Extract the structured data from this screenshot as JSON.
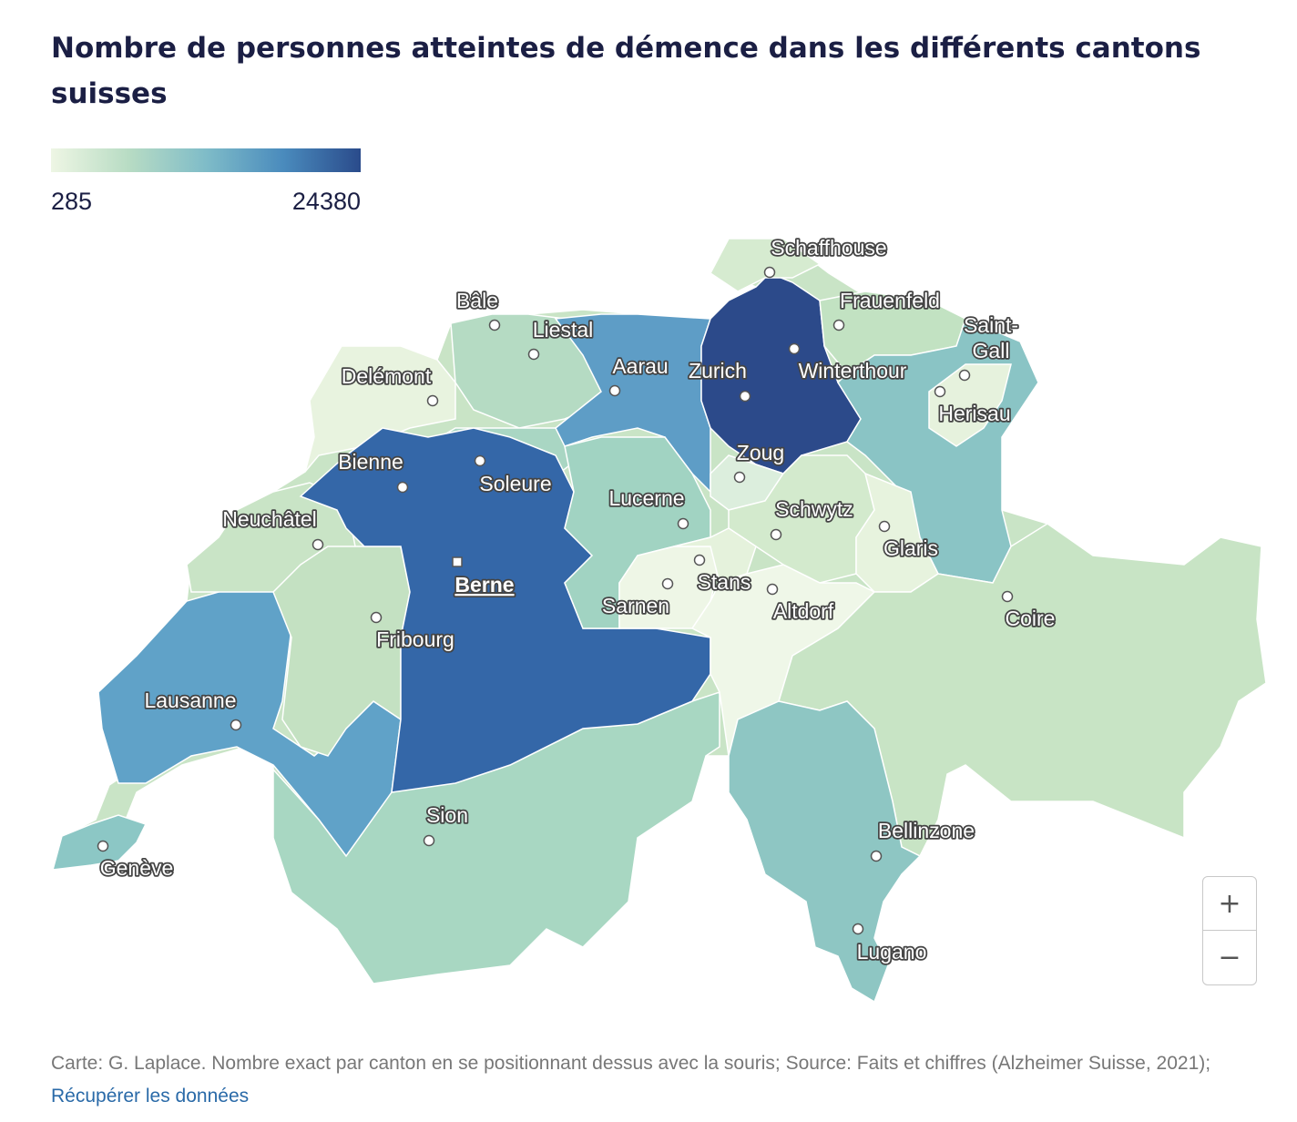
{
  "title": "Nombre de personnes atteintes de démence dans les différents cantons suisses",
  "legend": {
    "min": "285",
    "max": "24380",
    "colors": [
      "#eef6e4",
      "#b8dcc4",
      "#7fbcc8",
      "#4a8bbd",
      "#2a4b8b"
    ]
  },
  "cities": [
    {
      "name": "Schaffhouse",
      "capital": false
    },
    {
      "name": "Frauenfeld",
      "capital": false
    },
    {
      "name": "Saint-Gall",
      "capital": false
    },
    {
      "name": "Bâle",
      "capital": false
    },
    {
      "name": "Liestal",
      "capital": false
    },
    {
      "name": "Aarau",
      "capital": false
    },
    {
      "name": "Zurich",
      "capital": false
    },
    {
      "name": "Winterthour",
      "capital": false
    },
    {
      "name": "Delémont",
      "capital": false
    },
    {
      "name": "Herisau",
      "capital": false
    },
    {
      "name": "Zoug",
      "capital": false
    },
    {
      "name": "Bienne",
      "capital": false
    },
    {
      "name": "Soleure",
      "capital": false
    },
    {
      "name": "Lucerne",
      "capital": false
    },
    {
      "name": "Schwytz",
      "capital": false
    },
    {
      "name": "Neuchâtel",
      "capital": false
    },
    {
      "name": "Glaris",
      "capital": false
    },
    {
      "name": "Berne",
      "capital": true
    },
    {
      "name": "Stans",
      "capital": false
    },
    {
      "name": "Sarnen",
      "capital": false
    },
    {
      "name": "Altdorf",
      "capital": false
    },
    {
      "name": "Coire",
      "capital": false
    },
    {
      "name": "Fribourg",
      "capital": false
    },
    {
      "name": "Lausanne",
      "capital": false
    },
    {
      "name": "Sion",
      "capital": false
    },
    {
      "name": "Bellinzone",
      "capital": false
    },
    {
      "name": "Genève",
      "capital": false
    },
    {
      "name": "Lugano",
      "capital": false
    }
  ],
  "zoom": {
    "in": "+",
    "out": "−"
  },
  "footer": {
    "text": "Carte: G. Laplace. Nombre exact par canton en se positionnant dessus avec la souris; Source: Faits et chiffres (Alzheimer Suisse, 2021); ",
    "link": "Récupérer les données"
  }
}
